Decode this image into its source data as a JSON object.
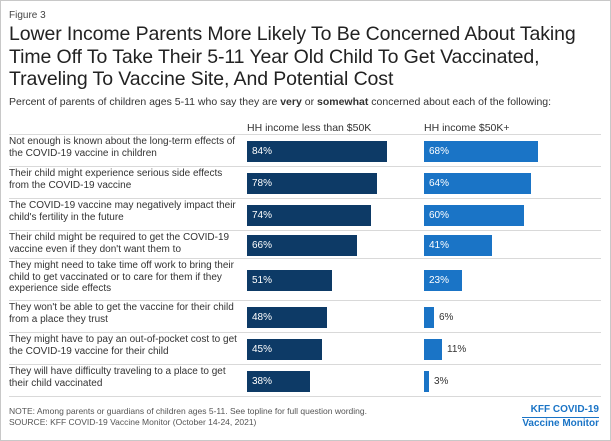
{
  "figure_label": "Figure 3",
  "chart_data": {
    "type": "bar",
    "orientation": "horizontal",
    "title": "Lower Income Parents More Likely To Be Concerned About Taking Time Off To Take Their 5-11 Year Old Child To Get Vaccinated, Traveling To Vaccine Site, And Potential Cost",
    "subtitle": {
      "before": "Percent of parents of children ages 5-11 who say they are ",
      "very": "very",
      "middle": " or ",
      "somewhat": "somewhat",
      "after": " concerned about each of the following:"
    },
    "categories": [
      "Not enough is known about the long-term effects of the COVID-19 vaccine in children",
      "Their child might experience serious side effects from the COVID-19 vaccine",
      "The COVID-19 vaccine may negatively impact their child's fertility in the future",
      "Their child might be required to get the COVID-19 vaccine even if they don't want them to",
      "They might need to take time off work to bring their child to get vaccinated or to care for them if they experience side effects",
      "They won't be able to get the vaccine for their child from a place they trust",
      "They might have to pay an out-of-pocket cost to get the COVID-19 vaccine for their child",
      "They will have difficulty traveling to a place to get their child vaccinated"
    ],
    "series": [
      {
        "name": "HH income less than $50K",
        "values": [
          84,
          78,
          74,
          66,
          51,
          48,
          45,
          38
        ],
        "labels": [
          "84%",
          "78%",
          "74%",
          "66%",
          "51%",
          "48%",
          "45%",
          "38%"
        ],
        "color": "#0d3a66"
      },
      {
        "name": "HH income $50K+",
        "values": [
          68,
          64,
          60,
          41,
          23,
          6,
          11,
          3
        ],
        "labels": [
          "68%",
          "64%",
          "60%",
          "41%",
          "23%",
          "6%",
          "11%",
          "3%"
        ],
        "color": "#1a74c6"
      }
    ],
    "xlim": [
      0,
      100
    ]
  },
  "footer": {
    "note": "NOTE: Among parents or guardians of children ages 5-11. See topline for full question wording.",
    "source": "SOURCE: KFF COVID-19 Vaccine Monitor (October 14-24, 2021)"
  },
  "brand": {
    "line1": "KFF COVID-19",
    "line2": "Vaccine Monitor"
  }
}
